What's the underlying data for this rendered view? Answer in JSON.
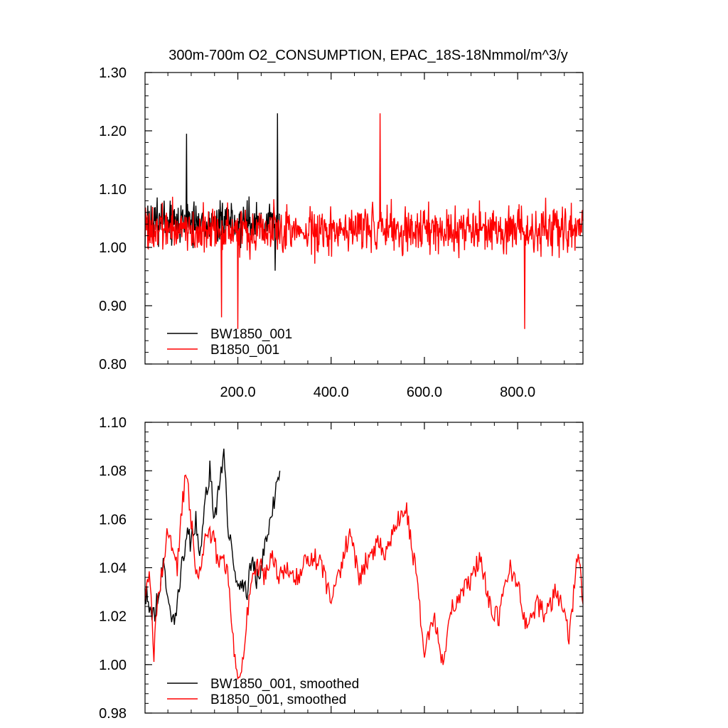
{
  "chart_data": [
    {
      "type": "line",
      "title": "300m-700m O2_CONSUMPTION, EPAC_18S-18Nmmol/m^3/y",
      "xlim": [
        1,
        940
      ],
      "ylim": [
        0.8,
        1.3
      ],
      "y_ticks": [
        "0.80",
        "0.90",
        "1.00",
        "1.10",
        "1.20",
        "1.30"
      ],
      "x_ticks": [
        "200.0",
        "400.0",
        "600.0",
        "800.0"
      ],
      "x_tick_values": [
        200,
        400,
        600,
        800
      ],
      "legend": "bottom-left",
      "series": [
        {
          "name": "BW1850_001",
          "color": "#000000",
          "x_range": [
            1,
            290
          ],
          "mean": 1.04,
          "amplitude": 0.05,
          "annotated_points": [
            [
              90,
              1.195
            ],
            [
              285,
              1.23
            ],
            [
              280,
              0.96
            ]
          ]
        },
        {
          "name": "B1850_001",
          "color": "#ff0000",
          "x_range": [
            1,
            940
          ],
          "mean": 1.03,
          "amplitude": 0.05,
          "annotated_points": [
            [
              505,
              1.23
            ],
            [
              200,
              0.86
            ],
            [
              815,
              0.86
            ],
            [
              165,
              0.88
            ]
          ]
        }
      ]
    },
    {
      "type": "line",
      "title": "",
      "xlim": [
        1,
        940
      ],
      "ylim": [
        0.98,
        1.1
      ],
      "y_ticks": [
        "0.98",
        "1.00",
        "1.02",
        "1.04",
        "1.06",
        "1.08",
        "1.10"
      ],
      "x_tick_values": [
        200,
        400,
        600,
        800
      ],
      "legend": "bottom-left",
      "series": [
        {
          "name": "BW1850_001, smoothed",
          "color": "#000000",
          "x": [
            1,
            10,
            20,
            30,
            40,
            50,
            60,
            70,
            80,
            90,
            100,
            110,
            120,
            130,
            140,
            150,
            160,
            170,
            180,
            190,
            200,
            210,
            220,
            230,
            240,
            250,
            260,
            270,
            280,
            290
          ],
          "y": [
            1.03,
            1.025,
            1.02,
            1.03,
            1.042,
            1.03,
            1.018,
            1.025,
            1.04,
            1.055,
            1.05,
            1.06,
            1.045,
            1.07,
            1.08,
            1.06,
            1.075,
            1.085,
            1.055,
            1.045,
            1.03,
            1.035,
            1.03,
            1.045,
            1.035,
            1.04,
            1.05,
            1.06,
            1.07,
            1.08
          ]
        },
        {
          "name": "B1850_001, smoothed",
          "color": "#ff0000",
          "x": [
            1,
            10,
            20,
            30,
            40,
            50,
            60,
            70,
            80,
            90,
            100,
            110,
            120,
            130,
            140,
            150,
            160,
            170,
            180,
            190,
            200,
            210,
            220,
            230,
            240,
            250,
            260,
            270,
            280,
            290,
            300,
            320,
            340,
            360,
            380,
            400,
            420,
            440,
            460,
            480,
            500,
            520,
            540,
            560,
            580,
            600,
            620,
            640,
            660,
            680,
            700,
            720,
            740,
            760,
            780,
            800,
            820,
            840,
            860,
            880,
            900,
            910,
            920,
            930,
            940
          ],
          "y": [
            1.025,
            1.04,
            1.005,
            1.03,
            1.04,
            1.055,
            1.045,
            1.04,
            1.065,
            1.08,
            1.06,
            1.035,
            1.04,
            1.05,
            1.055,
            1.05,
            1.04,
            1.045,
            1.035,
            1.01,
            0.995,
            1.0,
            1.02,
            1.035,
            1.04,
            1.04,
            1.035,
            1.045,
            1.04,
            1.035,
            1.04,
            1.035,
            1.04,
            1.045,
            1.04,
            1.025,
            1.04,
            1.055,
            1.035,
            1.045,
            1.05,
            1.045,
            1.06,
            1.065,
            1.04,
            1.005,
            1.02,
            1.0,
            1.025,
            1.03,
            1.035,
            1.045,
            1.025,
            1.02,
            1.04,
            1.035,
            1.015,
            1.025,
            1.02,
            1.03,
            1.025,
            1.01,
            1.03,
            1.05,
            1.025
          ]
        }
      ]
    }
  ]
}
